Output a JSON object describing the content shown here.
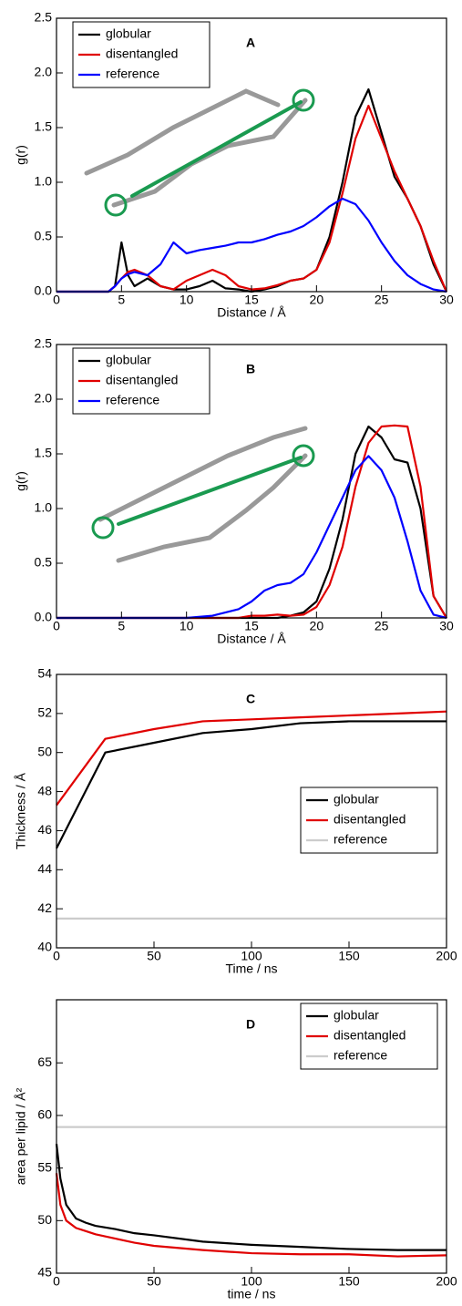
{
  "chart_data": [
    {
      "type": "line",
      "label": "A",
      "xlabel": "Distance / Å",
      "ylabel": "g(r)",
      "xlim": [
        0,
        30
      ],
      "xticks": [
        0,
        5,
        10,
        15,
        20,
        25,
        30
      ],
      "ylim": [
        0,
        2.5
      ],
      "yticks": [
        {
          "value": 0,
          "label": "0.0"
        },
        {
          "value": 0.5,
          "label": "0.5"
        },
        {
          "value": 1,
          "label": "1.0"
        },
        {
          "value": 1.5,
          "label": "1.5"
        },
        {
          "value": 2,
          "label": "2.0"
        },
        {
          "value": 2.5,
          "label": "2.5"
        }
      ],
      "legend": "upper left",
      "x": [
        0,
        2,
        4,
        4.5,
        5,
        5.5,
        6,
        7,
        8,
        9,
        10,
        11,
        12,
        13,
        14,
        15,
        16,
        17,
        18,
        19,
        20,
        21,
        22,
        23,
        24,
        25,
        26,
        27,
        28,
        29,
        30
      ],
      "series": [
        {
          "name": "globular",
          "color": "#000000",
          "values": [
            0,
            0,
            0,
            0.05,
            0.45,
            0.15,
            0.05,
            0.12,
            0.05,
            0.02,
            0.02,
            0.05,
            0.1,
            0.03,
            0.02,
            0,
            0.02,
            0.05,
            0.1,
            0.12,
            0.2,
            0.5,
            1.0,
            1.6,
            1.85,
            1.45,
            1.05,
            0.85,
            0.6,
            0.25,
            0
          ]
        },
        {
          "name": "disentangled",
          "color": "#e00000",
          "values": [
            0,
            0,
            0,
            0.05,
            0.12,
            0.18,
            0.2,
            0.15,
            0.05,
            0.02,
            0.1,
            0.15,
            0.2,
            0.15,
            0.05,
            0.02,
            0.03,
            0.06,
            0.1,
            0.12,
            0.2,
            0.45,
            0.9,
            1.4,
            1.7,
            1.4,
            1.1,
            0.85,
            0.6,
            0.28,
            0
          ]
        },
        {
          "name": "reference",
          "color": "#0000ff",
          "values": [
            0,
            0,
            0,
            0.05,
            0.12,
            0.16,
            0.18,
            0.15,
            0.25,
            0.45,
            0.35,
            0.38,
            0.4,
            0.42,
            0.45,
            0.45,
            0.48,
            0.52,
            0.55,
            0.6,
            0.68,
            0.78,
            0.85,
            0.8,
            0.65,
            0.45,
            0.28,
            0.15,
            0.07,
            0.02,
            0
          ]
        }
      ]
    },
    {
      "type": "line",
      "label": "B",
      "xlabel": "Distance / Å",
      "ylabel": "g(r)",
      "xlim": [
        0,
        30
      ],
      "xticks": [
        0,
        5,
        10,
        15,
        20,
        25,
        30
      ],
      "ylim": [
        0,
        2.5
      ],
      "yticks": [
        {
          "value": 0,
          "label": "0.0"
        },
        {
          "value": 0.5,
          "label": "0.5"
        },
        {
          "value": 1,
          "label": "1.0"
        },
        {
          "value": 1.5,
          "label": "1.5"
        },
        {
          "value": 2,
          "label": "2.0"
        },
        {
          "value": 2.5,
          "label": "2.5"
        }
      ],
      "legend": "upper left",
      "x": [
        0,
        5,
        10,
        12,
        14,
        15,
        16,
        17,
        18,
        19,
        20,
        21,
        22,
        23,
        24,
        25,
        26,
        27,
        28,
        29,
        30
      ],
      "series": [
        {
          "name": "globular",
          "color": "#000000",
          "values": [
            0,
            0,
            0,
            0,
            0,
            0,
            0,
            0,
            0.02,
            0.05,
            0.15,
            0.45,
            0.9,
            1.5,
            1.75,
            1.65,
            1.45,
            1.42,
            1.0,
            0.2,
            0
          ]
        },
        {
          "name": "disentangled",
          "color": "#e00000",
          "values": [
            0,
            0,
            0,
            0,
            0,
            0.02,
            0.02,
            0.03,
            0.02,
            0.03,
            0.1,
            0.3,
            0.65,
            1.2,
            1.6,
            1.75,
            1.76,
            1.75,
            1.2,
            0.2,
            0
          ]
        },
        {
          "name": "reference",
          "color": "#0000ff",
          "values": [
            0,
            0,
            0,
            0.02,
            0.08,
            0.15,
            0.25,
            0.3,
            0.32,
            0.4,
            0.6,
            0.85,
            1.1,
            1.35,
            1.48,
            1.35,
            1.1,
            0.7,
            0.25,
            0.03,
            0
          ]
        }
      ]
    },
    {
      "type": "line",
      "label": "C",
      "xlabel": "Time / ns",
      "ylabel": "Thickness / Å",
      "xlim": [
        0,
        200
      ],
      "xticks": [
        0,
        50,
        100,
        150,
        200
      ],
      "ylim": [
        40,
        54
      ],
      "yticks": [
        40,
        42,
        44,
        46,
        48,
        50,
        52,
        54
      ],
      "legend": "center right",
      "x": [
        0,
        25,
        50,
        75,
        100,
        125,
        150,
        175,
        200
      ],
      "series": [
        {
          "name": "globular",
          "color": "#000000",
          "values": [
            45.1,
            50.0,
            50.5,
            51.0,
            51.2,
            51.5,
            51.6,
            51.6,
            51.6
          ]
        },
        {
          "name": "disentangled",
          "color": "#e00000",
          "values": [
            47.3,
            50.7,
            51.2,
            51.6,
            51.7,
            51.8,
            51.9,
            52.0,
            52.1
          ]
        },
        {
          "name": "reference",
          "color": "#cccccc",
          "values": [
            41.5,
            41.5,
            41.5,
            41.5,
            41.5,
            41.5,
            41.5,
            41.5,
            41.5
          ]
        }
      ]
    },
    {
      "type": "line",
      "label": "D",
      "xlabel": "time / ns",
      "ylabel": "area per lipid / Å²",
      "xlim": [
        0,
        200
      ],
      "xticks": [
        0,
        50,
        100,
        150,
        200
      ],
      "ylim": [
        45,
        71
      ],
      "yticks": [
        45,
        50,
        55,
        60,
        65
      ],
      "legend": "upper right",
      "x": [
        0,
        2,
        5,
        10,
        15,
        20,
        30,
        40,
        50,
        75,
        100,
        125,
        150,
        175,
        200
      ],
      "series": [
        {
          "name": "globular",
          "color": "#000000",
          "values": [
            57.3,
            54,
            51.5,
            50.2,
            49.8,
            49.5,
            49.2,
            48.8,
            48.6,
            48.0,
            47.7,
            47.5,
            47.3,
            47.2,
            47.2
          ]
        },
        {
          "name": "disentangled",
          "color": "#e00000",
          "values": [
            54.5,
            51.5,
            50.0,
            49.3,
            49,
            48.7,
            48.3,
            47.9,
            47.6,
            47.2,
            46.9,
            46.8,
            46.8,
            46.6,
            46.7
          ]
        },
        {
          "name": "reference",
          "color": "#cccccc",
          "values": [
            58.9,
            58.9,
            58.9,
            58.9,
            58.9,
            58.9,
            58.9,
            58.9,
            58.9,
            58.9,
            58.9,
            58.9,
            58.9,
            58.9,
            58.9
          ]
        }
      ]
    }
  ]
}
